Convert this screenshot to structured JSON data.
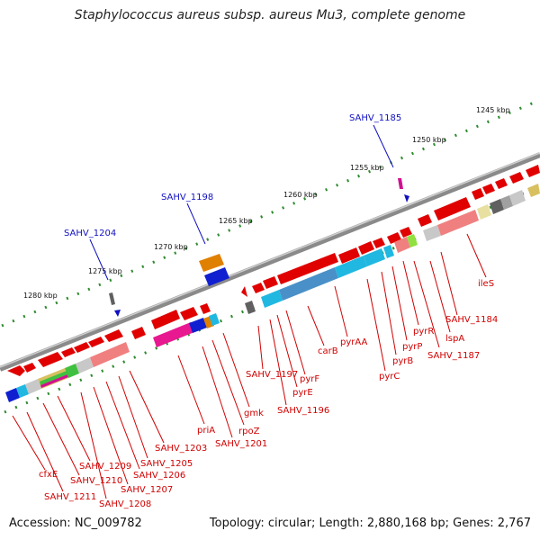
{
  "title": "Staphylococcus aureus subsp. aureus Mu3, complete genome",
  "footer": {
    "accession": "Accession: NC_009782",
    "summary": "Topology: circular; Length: 2,880,168 bp; Genes: 2,767"
  },
  "colors": {
    "backbone": "#8a8a8a",
    "tick_dot": "#2e8b2e",
    "forward_gene": "#e00000",
    "label_red": "#d00000",
    "label_blue": "#1010c0"
  },
  "scale_labels": [
    "1245 kbp",
    "1250 kbp",
    "1255 kbp",
    "1260 kbp",
    "1265 kbp",
    "1270 kbp",
    "1275 kbp",
    "1280 kbp"
  ],
  "top_labels": [
    "SAHV_1185",
    "SAHV_1198",
    "SAHV_1204"
  ],
  "bottom_labels": [
    "ileS",
    "SAHV_1184",
    "lspA",
    "SAHV_1187",
    "pyrR",
    "pyrP",
    "pyrB",
    "pyrC",
    "pyrAA",
    "carB",
    "pyrF",
    "pyrE",
    "SAHV_1196",
    "SAHV_1197",
    "gmk",
    "rpoZ",
    "SAHV_1201",
    "priA",
    "SAHV_1203",
    "SAHV_1205",
    "SAHV_1206",
    "SAHV_1207",
    "SAHV_1208",
    "SAHV_1209",
    "SAHV_1210",
    "SAHV_1211",
    "cfxE"
  ]
}
